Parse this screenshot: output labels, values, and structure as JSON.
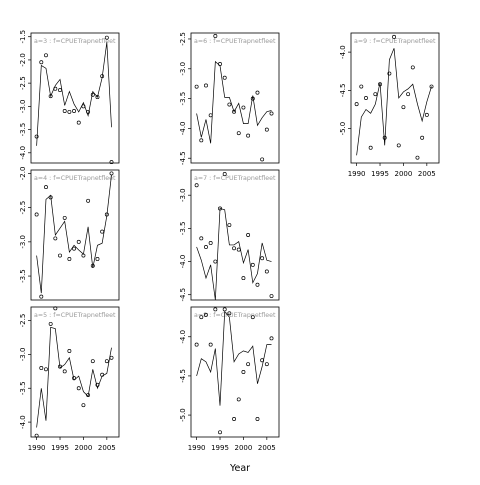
{
  "chart_data": {
    "type": "scatter",
    "xlabel": "Year",
    "xticks": [
      1990,
      1995,
      2000,
      2005
    ],
    "xlim": [
      1988.8,
      2007.6
    ],
    "panels": [
      {
        "label": "a=3 : f=CPUETrapnetfleet",
        "ylim": [
          -4.22,
          -1.42
        ],
        "yticks": [
          -4.0,
          -3.5,
          -3.0,
          -2.5,
          -2.0,
          -1.5
        ],
        "ytick_labels": [
          "-4.0",
          "-3.5",
          "-3.0",
          "-2.5",
          "-2.0",
          "-1.5"
        ],
        "points": [
          [
            1990,
            -3.65
          ],
          [
            1991,
            -2.05
          ],
          [
            1992,
            -1.9
          ],
          [
            1993,
            -2.78
          ],
          [
            1994,
            -2.62
          ],
          [
            1995,
            -2.65
          ],
          [
            1996,
            -3.1
          ],
          [
            1997,
            -3.12
          ],
          [
            1998,
            -3.1
          ],
          [
            1999,
            -3.35
          ],
          [
            2000,
            -3.0
          ],
          [
            2001,
            -3.12
          ],
          [
            2002,
            -2.75
          ],
          [
            2003,
            -2.8
          ],
          [
            2004,
            -2.35
          ],
          [
            2005,
            -1.52
          ],
          [
            2006,
            -4.2
          ]
        ],
        "fitted": [
          [
            1990,
            -3.85
          ],
          [
            1991,
            -2.12
          ],
          [
            1992,
            -2.18
          ],
          [
            1993,
            -2.78
          ],
          [
            1994,
            -2.55
          ],
          [
            1995,
            -2.42
          ],
          [
            1996,
            -2.98
          ],
          [
            1997,
            -2.68
          ],
          [
            1998,
            -2.95
          ],
          [
            1999,
            -3.12
          ],
          [
            2000,
            -2.92
          ],
          [
            2001,
            -3.2
          ],
          [
            2002,
            -2.68
          ],
          [
            2003,
            -2.8
          ],
          [
            2004,
            -2.38
          ],
          [
            2005,
            -1.62
          ],
          [
            2006,
            -3.45
          ]
        ]
      },
      {
        "label": "a=4 : f=CPUETrapnetfleet",
        "ylim": [
          -3.85,
          -1.95
        ],
        "yticks": [
          -3.5,
          -3.0,
          -2.5,
          -2.0
        ],
        "ytick_labels": [
          "-3.5",
          "-3.0",
          "-2.5",
          "-2.0"
        ],
        "points": [
          [
            1990,
            -2.6
          ],
          [
            1991,
            -3.8
          ],
          [
            1992,
            -2.2
          ],
          [
            1993,
            -2.35
          ],
          [
            1994,
            -2.95
          ],
          [
            1995,
            -3.2
          ],
          [
            1996,
            -2.65
          ],
          [
            1997,
            -3.25
          ],
          [
            1998,
            -3.1
          ],
          [
            1999,
            -3.0
          ],
          [
            2000,
            -3.2
          ],
          [
            2001,
            -2.4
          ],
          [
            2002,
            -3.35
          ],
          [
            2003,
            -3.25
          ],
          [
            2004,
            -2.85
          ],
          [
            2005,
            -2.6
          ],
          [
            2006,
            -2.0
          ]
        ],
        "fitted": [
          [
            1990,
            -3.2
          ],
          [
            1991,
            -3.75
          ],
          [
            1992,
            -2.38
          ],
          [
            1993,
            -2.32
          ],
          [
            1994,
            -2.9
          ],
          [
            1995,
            -2.8
          ],
          [
            1996,
            -2.7
          ],
          [
            1997,
            -3.15
          ],
          [
            1998,
            -3.05
          ],
          [
            1999,
            -3.12
          ],
          [
            2000,
            -3.18
          ],
          [
            2001,
            -2.78
          ],
          [
            2002,
            -3.38
          ],
          [
            2003,
            -3.05
          ],
          [
            2004,
            -3.02
          ],
          [
            2005,
            -2.62
          ],
          [
            2006,
            -2.02
          ]
        ]
      },
      {
        "label": "a=5 : f=CPUETrapnetfleet",
        "ylim": [
          -4.22,
          -2.3
        ],
        "yticks": [
          -4.0,
          -3.5,
          -3.0,
          -2.5
        ],
        "ytick_labels": [
          "-4.0",
          "-3.5",
          "-3.0",
          "-2.5"
        ],
        "points": [
          [
            1990,
            -4.2
          ],
          [
            1991,
            -3.2
          ],
          [
            1992,
            -3.22
          ],
          [
            1993,
            -2.55
          ],
          [
            1994,
            -2.32
          ],
          [
            1995,
            -3.18
          ],
          [
            1996,
            -3.25
          ],
          [
            1997,
            -2.95
          ],
          [
            1998,
            -3.35
          ],
          [
            1999,
            -3.5
          ],
          [
            2000,
            -3.75
          ],
          [
            2001,
            -3.6
          ],
          [
            2002,
            -3.1
          ],
          [
            2003,
            -3.45
          ],
          [
            2004,
            -3.3
          ],
          [
            2005,
            -3.1
          ],
          [
            2006,
            -3.05
          ]
        ],
        "fitted": [
          [
            1990,
            -4.08
          ],
          [
            1991,
            -3.5
          ],
          [
            1992,
            -3.98
          ],
          [
            1993,
            -2.6
          ],
          [
            1994,
            -2.62
          ],
          [
            1995,
            -3.2
          ],
          [
            1996,
            -3.15
          ],
          [
            1997,
            -3.05
          ],
          [
            1998,
            -3.38
          ],
          [
            1999,
            -3.32
          ],
          [
            2000,
            -3.55
          ],
          [
            2001,
            -3.62
          ],
          [
            2002,
            -3.22
          ],
          [
            2003,
            -3.5
          ],
          [
            2004,
            -3.32
          ],
          [
            2005,
            -3.28
          ],
          [
            2006,
            -2.9
          ]
        ]
      },
      {
        "label": "a=6 : f=CPUETrapnetfleet",
        "ylim": [
          -4.58,
          -2.4
        ],
        "yticks": [
          -4.5,
          -4.0,
          -3.5,
          -3.0,
          -2.5
        ],
        "ytick_labels": [
          "-4.5",
          "-4.0",
          "-3.5",
          "-3.0",
          "-2.5"
        ],
        "points": [
          [
            1990,
            -3.3
          ],
          [
            1991,
            -4.2
          ],
          [
            1992,
            -3.28
          ],
          [
            1993,
            -3.78
          ],
          [
            1994,
            -2.45
          ],
          [
            1995,
            -2.92
          ],
          [
            1996,
            -3.15
          ],
          [
            1997,
            -3.6
          ],
          [
            1998,
            -3.72
          ],
          [
            1999,
            -4.08
          ],
          [
            2000,
            -3.65
          ],
          [
            2001,
            -4.12
          ],
          [
            2002,
            -3.5
          ],
          [
            2003,
            -3.4
          ],
          [
            2004,
            -4.52
          ],
          [
            2005,
            -4.02
          ],
          [
            2006,
            -3.75
          ]
        ],
        "fitted": [
          [
            1990,
            -3.75
          ],
          [
            1991,
            -4.15
          ],
          [
            1992,
            -3.85
          ],
          [
            1993,
            -4.25
          ],
          [
            1994,
            -2.88
          ],
          [
            1995,
            -2.95
          ],
          [
            1996,
            -3.48
          ],
          [
            1997,
            -3.48
          ],
          [
            1998,
            -3.72
          ],
          [
            1999,
            -3.58
          ],
          [
            2000,
            -3.92
          ],
          [
            2001,
            -3.92
          ],
          [
            2002,
            -3.45
          ],
          [
            2003,
            -3.95
          ],
          [
            2004,
            -3.82
          ],
          [
            2005,
            -3.72
          ],
          [
            2006,
            -3.7
          ]
        ]
      },
      {
        "label": "a=7 : f=CPUETrapnetfleet",
        "ylim": [
          -4.58,
          -2.62
        ],
        "yticks": [
          -4.5,
          -4.0,
          -3.5,
          -3.0
        ],
        "ytick_labels": [
          "-4.5",
          "-4.0",
          "-3.5",
          "-3.0"
        ],
        "points": [
          [
            1990,
            -2.85
          ],
          [
            1991,
            -3.65
          ],
          [
            1992,
            -3.78
          ],
          [
            1993,
            -3.72
          ],
          [
            1994,
            -4.0
          ],
          [
            1995,
            -3.2
          ],
          [
            1996,
            -2.68
          ],
          [
            1997,
            -3.45
          ],
          [
            1998,
            -3.8
          ],
          [
            1999,
            -3.82
          ],
          [
            2000,
            -4.25
          ],
          [
            2001,
            -3.6
          ],
          [
            2002,
            -4.05
          ],
          [
            2003,
            -4.35
          ],
          [
            2004,
            -3.95
          ],
          [
            2005,
            -4.15
          ],
          [
            2006,
            -4.52
          ]
        ],
        "fitted": [
          [
            1990,
            -3.78
          ],
          [
            1991,
            -3.98
          ],
          [
            1992,
            -4.25
          ],
          [
            1993,
            -4.05
          ],
          [
            1994,
            -4.58
          ],
          [
            1995,
            -3.2
          ],
          [
            1996,
            -3.22
          ],
          [
            1997,
            -3.75
          ],
          [
            1998,
            -3.75
          ],
          [
            1999,
            -3.7
          ],
          [
            2000,
            -4.02
          ],
          [
            2001,
            -3.82
          ],
          [
            2002,
            -4.32
          ],
          [
            2003,
            -4.18
          ],
          [
            2004,
            -3.72
          ],
          [
            2005,
            -3.98
          ],
          [
            2006,
            -4.0
          ]
        ]
      },
      {
        "label": "a=8 : f=CPUETrapnetfleet",
        "ylim": [
          -5.28,
          -3.62
        ],
        "yticks": [
          -5.0,
          -4.5,
          -4.0
        ],
        "ytick_labels": [
          "-5.0",
          "-4.5",
          "-4.0"
        ],
        "points": [
          [
            1990,
            -4.1
          ],
          [
            1991,
            -3.75
          ],
          [
            1992,
            -3.72
          ],
          [
            1993,
            -4.1
          ],
          [
            1994,
            -3.65
          ],
          [
            1995,
            -5.22
          ],
          [
            1996,
            -3.65
          ],
          [
            1997,
            -3.7
          ],
          [
            1998,
            -5.05
          ],
          [
            1999,
            -4.8
          ],
          [
            2000,
            -4.45
          ],
          [
            2001,
            -4.35
          ],
          [
            2002,
            -3.75
          ],
          [
            2003,
            -5.05
          ],
          [
            2004,
            -4.3
          ],
          [
            2005,
            -4.35
          ],
          [
            2006,
            -4.02
          ]
        ],
        "fitted": [
          [
            1990,
            -4.5
          ],
          [
            1991,
            -4.28
          ],
          [
            1992,
            -4.32
          ],
          [
            1993,
            -4.45
          ],
          [
            1994,
            -4.15
          ],
          [
            1995,
            -4.88
          ],
          [
            1996,
            -3.68
          ],
          [
            1997,
            -3.75
          ],
          [
            1998,
            -4.32
          ],
          [
            1999,
            -4.22
          ],
          [
            2000,
            -4.18
          ],
          [
            2001,
            -4.2
          ],
          [
            2002,
            -4.12
          ],
          [
            2003,
            -4.6
          ],
          [
            2004,
            -4.38
          ],
          [
            2005,
            -4.1
          ],
          [
            2006,
            -4.1
          ]
        ]
      },
      {
        "label": "a=9 : f=CPUETrapnetfleet",
        "ylim": [
          -5.45,
          -3.75
        ],
        "yticks": [
          -5.0,
          -4.5,
          -4.0
        ],
        "ytick_labels": [
          "-5.0",
          "-4.5",
          "-4.0"
        ],
        "points": [
          [
            1990,
            -4.68
          ],
          [
            1991,
            -4.45
          ],
          [
            1992,
            -4.6
          ],
          [
            1993,
            -5.25
          ],
          [
            1994,
            -4.55
          ],
          [
            1995,
            -4.42
          ],
          [
            1996,
            -5.12
          ],
          [
            1997,
            -4.28
          ],
          [
            1998,
            -3.8
          ],
          [
            1999,
            -5.22
          ],
          [
            2000,
            -4.72
          ],
          [
            2001,
            -4.55
          ],
          [
            2002,
            -4.2
          ],
          [
            2003,
            -5.38
          ],
          [
            2004,
            -5.12
          ],
          [
            2005,
            -4.82
          ],
          [
            2006,
            -4.45
          ]
        ],
        "fitted": [
          [
            1990,
            -5.35
          ],
          [
            1991,
            -4.85
          ],
          [
            1992,
            -4.75
          ],
          [
            1993,
            -4.8
          ],
          [
            1994,
            -4.68
          ],
          [
            1995,
            -4.4
          ],
          [
            1996,
            -5.22
          ],
          [
            1997,
            -4.1
          ],
          [
            1998,
            -3.95
          ],
          [
            1999,
            -4.6
          ],
          [
            2000,
            -4.52
          ],
          [
            2001,
            -4.48
          ],
          [
            2002,
            -4.42
          ],
          [
            2003,
            -4.68
          ],
          [
            2004,
            -4.9
          ],
          [
            2005,
            -4.65
          ],
          [
            2006,
            -4.45
          ]
        ]
      }
    ]
  }
}
